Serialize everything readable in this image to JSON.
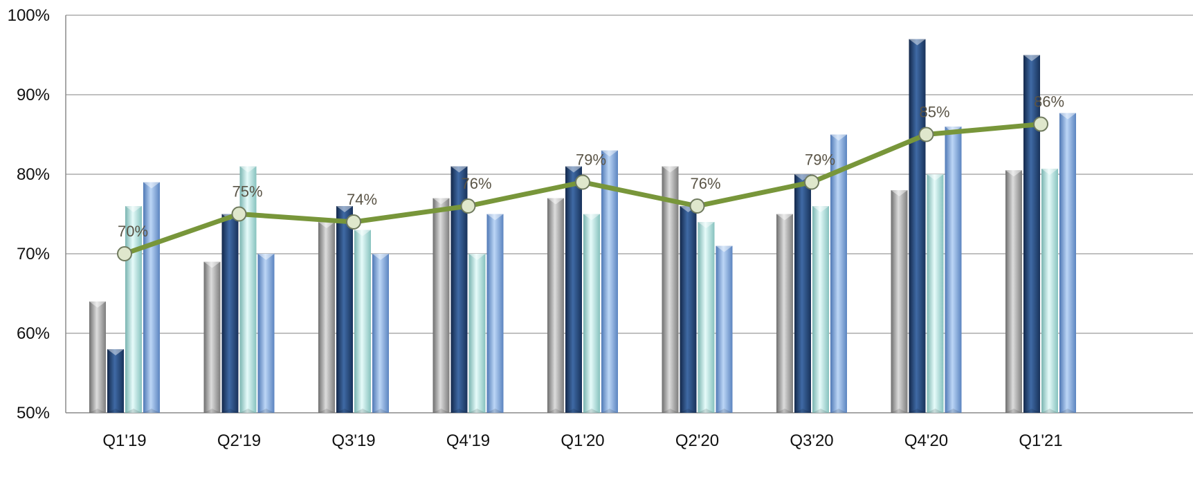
{
  "chart_data": {
    "type": "bar",
    "categories": [
      "Q1'19",
      "Q2'19",
      "Q3'19",
      "Q4'19",
      "Q1'20",
      "Q2'20",
      "Q3'20",
      "Q4'20",
      "Q1'21"
    ],
    "ylim": [
      50,
      100
    ],
    "yticks": [
      50,
      60,
      70,
      80,
      90,
      100
    ],
    "ytick_labels": [
      "50%",
      "60%",
      "70%",
      "80%",
      "90%",
      "100%"
    ],
    "grid": true,
    "legend": false,
    "series": [
      {
        "type": "bar",
        "color": "#a8a8a8",
        "values": [
          64,
          69,
          74,
          77,
          77,
          81,
          75,
          78,
          80.5
        ]
      },
      {
        "type": "bar",
        "color": "#2b4f80",
        "values": [
          58,
          75,
          76,
          81,
          81,
          76,
          80,
          97,
          95
        ]
      },
      {
        "type": "bar",
        "color": "#bfe8e6",
        "values": [
          76,
          81,
          73,
          70,
          75,
          74,
          76,
          80,
          80.7
        ]
      },
      {
        "type": "bar",
        "color": "#86aee0",
        "values": [
          79,
          70,
          70,
          75,
          83,
          71,
          85,
          86,
          87.7
        ]
      },
      {
        "type": "line",
        "color": "#78963a",
        "marker_fill": "#dfe7cc",
        "values": [
          70,
          75,
          74,
          76,
          79,
          76,
          79,
          85,
          86.3
        ],
        "labels": [
          "70%",
          "75%",
          "74%",
          "76%",
          "79%",
          "76%",
          "79%",
          "85%",
          "86%"
        ]
      }
    ]
  }
}
